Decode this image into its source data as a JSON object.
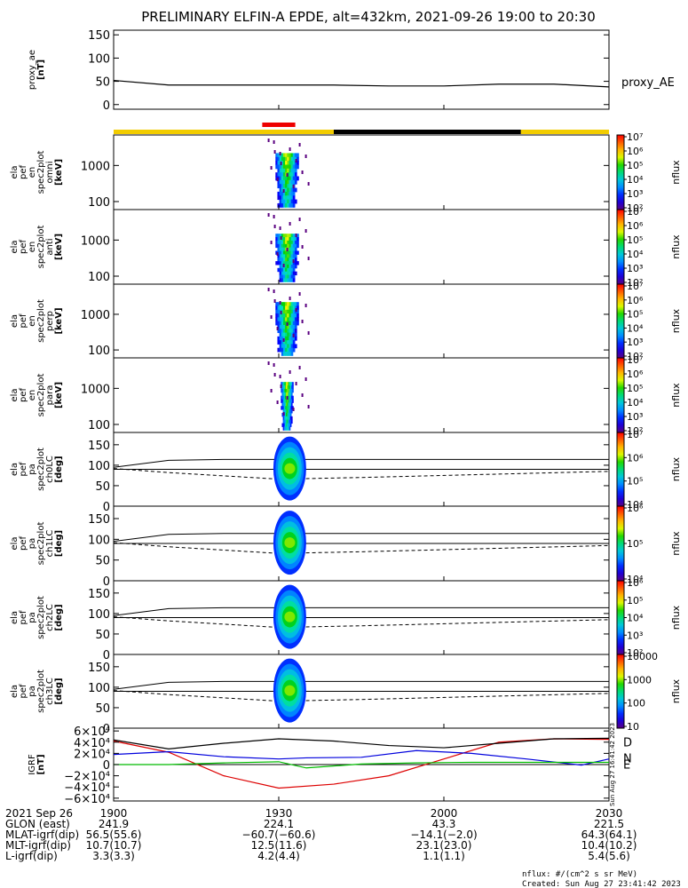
{
  "title": "PRELIMINARY ELFIN-A EPDE, alt=432km, 2021-09-26 19:00 to 20:30",
  "chart_data": [
    {
      "type": "line",
      "panel": "proxy_ae",
      "ylabel": [
        "proxy_ae",
        "[nT]"
      ],
      "ylim": [
        -10,
        160
      ],
      "yticks": [
        0,
        50,
        100,
        150
      ],
      "series": [
        {
          "name": "proxy_AE",
          "color": "#000000",
          "x": [
            0,
            10,
            20,
            30,
            40,
            50,
            60,
            70,
            80,
            90
          ],
          "y": [
            52,
            42,
            42,
            42,
            42,
            40,
            40,
            44,
            44,
            38
          ]
        }
      ]
    },
    {
      "type": "heatmap",
      "panel": "spec_omni",
      "ylabel": [
        "ela",
        "pef",
        "en",
        "spec2plot",
        "omni",
        "[keV]"
      ],
      "yscale": "log",
      "ylim": [
        60,
        7000
      ],
      "yticks": [
        100,
        1000
      ],
      "ytick_labels": [
        "100",
        "1000"
      ],
      "colorbar": {
        "label": "nflux",
        "ticks": [
          "10²",
          "10³",
          "10⁴",
          "10⁵",
          "10⁶",
          "10⁷"
        ]
      }
    },
    {
      "type": "heatmap",
      "panel": "spec_anti",
      "ylabel": [
        "ela",
        "pef",
        "en",
        "spec2plot",
        "anti",
        "[keV]"
      ],
      "yscale": "log",
      "ylim": [
        60,
        7000
      ],
      "yticks": [
        100,
        1000
      ],
      "ytick_labels": [
        "100",
        "1000"
      ],
      "colorbar": {
        "label": "nflux",
        "ticks": [
          "10²",
          "10³",
          "10⁴",
          "10⁵",
          "10⁶",
          "10⁷"
        ]
      }
    },
    {
      "type": "heatmap",
      "panel": "spec_perp",
      "ylabel": [
        "ela",
        "pef",
        "en",
        "spec2plot",
        "perp",
        "[keV]"
      ],
      "yscale": "log",
      "ylim": [
        60,
        7000
      ],
      "yticks": [
        100,
        1000
      ],
      "ytick_labels": [
        "100",
        "1000"
      ],
      "colorbar": {
        "label": "nflux",
        "ticks": [
          "10²",
          "10³",
          "10⁴",
          "10⁵",
          "10⁶",
          "10⁷"
        ]
      }
    },
    {
      "type": "heatmap",
      "panel": "spec_para",
      "ylabel": [
        "ela",
        "pef",
        "en",
        "spec2plot",
        "para",
        "[keV]"
      ],
      "yscale": "log",
      "ylim": [
        60,
        7000
      ],
      "yticks": [
        100,
        1000
      ],
      "ytick_labels": [
        "100",
        "1000"
      ],
      "colorbar": {
        "label": "nflux",
        "ticks": [
          "10²",
          "10³",
          "10⁴",
          "10⁵",
          "10⁶",
          "10⁷"
        ]
      }
    },
    {
      "type": "heatmap",
      "panel": "pa_ch0",
      "ylabel": [
        "ela",
        "pef",
        "pa",
        "spec2plot",
        "ch0LC",
        "[deg]"
      ],
      "ylim": [
        0,
        180
      ],
      "yticks": [
        0,
        50,
        100,
        150
      ],
      "colorbar": {
        "label": "nflux",
        "ticks": [
          "10⁴",
          "10⁵",
          "10⁶",
          "10⁷"
        ]
      }
    },
    {
      "type": "heatmap",
      "panel": "pa_ch1",
      "ylabel": [
        "ela",
        "pef",
        "pa",
        "spec2plot",
        "ch1LC",
        "[deg]"
      ],
      "ylim": [
        0,
        180
      ],
      "yticks": [
        0,
        50,
        100,
        150
      ],
      "colorbar": {
        "label": "nflux",
        "ticks": [
          "10⁴",
          "10⁵",
          "10⁶"
        ]
      }
    },
    {
      "type": "heatmap",
      "panel": "pa_ch2",
      "ylabel": [
        "ela",
        "pef",
        "pa",
        "spec2plot",
        "ch2LC",
        "[deg]"
      ],
      "ylim": [
        0,
        180
      ],
      "yticks": [
        0,
        50,
        100,
        150
      ],
      "colorbar": {
        "label": "nflux",
        "ticks": [
          "10²",
          "10³",
          "10⁴",
          "10⁵",
          "10⁶"
        ]
      }
    },
    {
      "type": "heatmap",
      "panel": "pa_ch3",
      "ylabel": [
        "ela",
        "pef",
        "pa",
        "spec2plot",
        "ch3LC",
        "[deg]"
      ],
      "ylim": [
        0,
        180
      ],
      "yticks": [
        0,
        50,
        100,
        150
      ],
      "colorbar": {
        "label": "nflux",
        "ticks": [
          "10",
          "100",
          "1000",
          "10000"
        ]
      }
    },
    {
      "type": "line",
      "panel": "igrf",
      "ylabel": [
        "IGRF",
        "[nT]"
      ],
      "ylim": [
        -65000,
        65000
      ],
      "yticks": [
        -60000,
        -40000,
        -20000,
        0,
        20000,
        40000,
        60000
      ],
      "ytick_labels": [
        "−6×10⁴",
        "−4×10⁴",
        "−2×10⁴",
        "0",
        "2×10⁴",
        "4×10⁴",
        "6×10⁴"
      ],
      "series": [
        {
          "name": "D",
          "color": "#dd0000",
          "x": [
            0,
            10,
            20,
            30,
            40,
            50,
            60,
            70,
            80,
            90
          ],
          "y": [
            42000,
            22000,
            -20000,
            -42000,
            -35000,
            -20000,
            10000,
            40000,
            46000,
            45000
          ]
        },
        {
          "name": "N",
          "color": "#0000dd",
          "x": [
            0,
            10,
            20,
            30,
            35,
            45,
            55,
            65,
            75,
            85,
            90
          ],
          "y": [
            18000,
            23000,
            14000,
            10000,
            12000,
            13000,
            25000,
            20000,
            10000,
            -1000,
            10000
          ]
        },
        {
          "name": "E",
          "color": "#00bb00",
          "x": [
            0,
            10,
            20,
            30,
            35,
            45,
            55,
            65,
            75,
            90
          ],
          "y": [
            0,
            0,
            3000,
            5000,
            -6000,
            1000,
            3000,
            4000,
            4000,
            4000
          ]
        },
        {
          "color": "#000000",
          "x": [
            0,
            10,
            20,
            30,
            40,
            50,
            60,
            70,
            80,
            90
          ],
          "y": [
            44000,
            28000,
            38000,
            46000,
            42000,
            34000,
            30000,
            38000,
            46000,
            47000
          ]
        }
      ]
    }
  ],
  "axis": {
    "row_labels": [
      "2021 Sep 26",
      "GLON (east)",
      "MLAT-igrf(dip)",
      "MLT-igrf(dip)",
      "L-igrf(dip)"
    ],
    "columns": [
      {
        "values": [
          "1900",
          "241.9",
          "56.5(55.6)",
          "10.7(10.7)",
          "3.3(3.3)"
        ]
      },
      {
        "values": [
          "1930",
          "224.1",
          "−60.7(−60.6)",
          "12.5(11.6)",
          "4.2(4.4)"
        ]
      },
      {
        "values": [
          "2000",
          "43.3",
          "−14.1(−2.0)",
          "23.1(23.0)",
          "1.1(1.1)"
        ]
      },
      {
        "values": [
          "2030",
          "221.5",
          "64.3(64.1)",
          "10.4(10.2)",
          "5.4(5.6)"
        ]
      }
    ]
  },
  "footer": {
    "units": "nflux: #/(cm^2 s sr MeV)",
    "created": "Created: Sun Aug 27 23:41:42 2023",
    "side_stamp": "Sun Aug 27 16:41:42 2023"
  }
}
